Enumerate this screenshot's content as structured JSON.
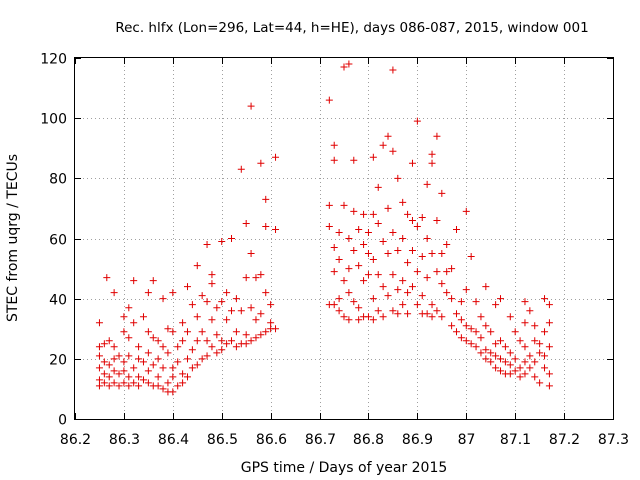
{
  "chart_data": {
    "type": "scatter",
    "title": "Rec. hlfx (Lon=296, Lat=44, h=HE), days 086-087, 2015, window 001",
    "xlabel": "GPS time / Days of year 2015",
    "ylabel": "STEC from uqrg / TECUs",
    "xlim": [
      86.2,
      87.3
    ],
    "ylim": [
      0,
      120
    ],
    "xticks": [
      86.2,
      86.3,
      86.4,
      86.5,
      86.6,
      86.7,
      86.8,
      86.9,
      87,
      87.1,
      87.2,
      87.3
    ],
    "xtick_labels": [
      "86.2",
      "86.3",
      "86.4",
      "86.5",
      "86.6",
      "86.7",
      "86.8",
      "86.9",
      "87",
      "87.1",
      "87.2",
      "87.3"
    ],
    "yticks": [
      0,
      20,
      40,
      60,
      80,
      100,
      120
    ],
    "ytick_labels": [
      "0",
      "20",
      "40",
      "60",
      "80",
      "100",
      "120"
    ],
    "grid": true,
    "marker": "+",
    "color": "#e00000",
    "series": [
      {
        "points": [
          [
            86.25,
            32
          ],
          [
            86.25,
            24
          ],
          [
            86.25,
            21
          ],
          [
            86.25,
            17
          ],
          [
            86.25,
            13
          ],
          [
            86.25,
            11
          ],
          [
            86.26,
            25
          ],
          [
            86.26,
            19
          ],
          [
            86.26,
            15
          ],
          [
            86.26,
            12
          ],
          [
            86.265,
            47
          ],
          [
            86.27,
            26
          ],
          [
            86.27,
            18
          ],
          [
            86.27,
            14
          ],
          [
            86.27,
            11
          ],
          [
            86.28,
            42
          ],
          [
            86.28,
            24
          ],
          [
            86.28,
            20
          ],
          [
            86.28,
            16
          ],
          [
            86.28,
            12
          ],
          [
            86.29,
            21
          ],
          [
            86.29,
            15
          ],
          [
            86.29,
            11
          ],
          [
            86.3,
            34
          ],
          [
            86.3,
            29
          ],
          [
            86.3,
            19
          ],
          [
            86.3,
            16
          ],
          [
            86.3,
            12
          ],
          [
            86.31,
            37
          ],
          [
            86.31,
            27
          ],
          [
            86.31,
            21
          ],
          [
            86.31,
            14
          ],
          [
            86.31,
            11
          ],
          [
            86.32,
            46
          ],
          [
            86.32,
            32
          ],
          [
            86.32,
            17
          ],
          [
            86.32,
            12
          ],
          [
            86.33,
            24
          ],
          [
            86.33,
            20
          ],
          [
            86.33,
            14
          ],
          [
            86.33,
            11
          ],
          [
            86.34,
            34
          ],
          [
            86.34,
            19
          ],
          [
            86.34,
            13
          ],
          [
            86.35,
            42
          ],
          [
            86.35,
            29
          ],
          [
            86.35,
            22
          ],
          [
            86.35,
            16
          ],
          [
            86.35,
            12
          ],
          [
            86.36,
            46
          ],
          [
            86.36,
            27
          ],
          [
            86.36,
            18
          ],
          [
            86.36,
            11
          ],
          [
            86.37,
            26
          ],
          [
            86.37,
            20
          ],
          [
            86.37,
            14
          ],
          [
            86.37,
            11
          ],
          [
            86.38,
            40
          ],
          [
            86.38,
            24
          ],
          [
            86.38,
            17
          ],
          [
            86.38,
            10
          ],
          [
            86.39,
            30
          ],
          [
            86.39,
            22
          ],
          [
            86.39,
            12
          ],
          [
            86.39,
            9
          ],
          [
            86.4,
            42
          ],
          [
            86.4,
            29
          ],
          [
            86.4,
            17
          ],
          [
            86.4,
            14
          ],
          [
            86.4,
            9
          ],
          [
            86.41,
            24
          ],
          [
            86.41,
            19
          ],
          [
            86.41,
            11
          ],
          [
            86.42,
            32
          ],
          [
            86.42,
            26
          ],
          [
            86.42,
            15
          ],
          [
            86.42,
            12
          ],
          [
            86.43,
            44
          ],
          [
            86.43,
            29
          ],
          [
            86.43,
            20
          ],
          [
            86.43,
            14
          ],
          [
            86.44,
            38
          ],
          [
            86.44,
            23
          ],
          [
            86.44,
            17
          ],
          [
            86.45,
            51
          ],
          [
            86.45,
            34
          ],
          [
            86.45,
            26
          ],
          [
            86.45,
            18
          ],
          [
            86.46,
            41
          ],
          [
            86.46,
            29
          ],
          [
            86.46,
            20
          ],
          [
            86.47,
            58
          ],
          [
            86.47,
            39
          ],
          [
            86.47,
            26
          ],
          [
            86.47,
            21
          ],
          [
            86.48,
            48
          ],
          [
            86.48,
            45
          ],
          [
            86.48,
            33
          ],
          [
            86.48,
            24
          ],
          [
            86.49,
            37
          ],
          [
            86.49,
            28
          ],
          [
            86.49,
            22
          ],
          [
            86.5,
            59
          ],
          [
            86.5,
            39
          ],
          [
            86.5,
            26
          ],
          [
            86.5,
            23
          ],
          [
            86.51,
            42
          ],
          [
            86.51,
            33
          ],
          [
            86.51,
            25
          ],
          [
            86.52,
            60
          ],
          [
            86.52,
            36
          ],
          [
            86.52,
            26
          ],
          [
            86.53,
            40
          ],
          [
            86.53,
            29
          ],
          [
            86.53,
            24
          ],
          [
            86.54,
            83
          ],
          [
            86.54,
            36
          ],
          [
            86.54,
            25
          ],
          [
            86.55,
            65
          ],
          [
            86.55,
            47
          ],
          [
            86.55,
            28
          ],
          [
            86.55,
            25
          ],
          [
            86.56,
            104
          ],
          [
            86.56,
            55
          ],
          [
            86.56,
            37
          ],
          [
            86.56,
            26
          ],
          [
            86.57,
            47
          ],
          [
            86.57,
            33
          ],
          [
            86.57,
            27
          ],
          [
            86.58,
            85
          ],
          [
            86.58,
            48
          ],
          [
            86.58,
            35
          ],
          [
            86.58,
            28
          ],
          [
            86.59,
            73
          ],
          [
            86.59,
            64
          ],
          [
            86.59,
            42
          ],
          [
            86.59,
            29
          ],
          [
            86.6,
            38
          ],
          [
            86.6,
            32
          ],
          [
            86.6,
            30
          ],
          [
            86.61,
            87
          ],
          [
            86.61,
            63
          ],
          [
            86.61,
            30
          ],
          [
            86.72,
            106
          ],
          [
            86.72,
            71
          ],
          [
            86.72,
            64
          ],
          [
            86.72,
            38
          ],
          [
            86.73,
            91
          ],
          [
            86.73,
            86
          ],
          [
            86.73,
            57
          ],
          [
            86.73,
            49
          ],
          [
            86.73,
            38
          ],
          [
            86.74,
            62
          ],
          [
            86.74,
            53
          ],
          [
            86.74,
            40
          ],
          [
            86.74,
            36
          ],
          [
            86.75,
            117
          ],
          [
            86.75,
            71
          ],
          [
            86.75,
            46
          ],
          [
            86.75,
            34
          ],
          [
            86.76,
            118
          ],
          [
            86.76,
            60
          ],
          [
            86.76,
            50
          ],
          [
            86.76,
            42
          ],
          [
            86.76,
            33
          ],
          [
            86.77,
            86
          ],
          [
            86.77,
            69
          ],
          [
            86.77,
            56
          ],
          [
            86.77,
            39
          ],
          [
            86.78,
            63
          ],
          [
            86.78,
            51
          ],
          [
            86.78,
            37
          ],
          [
            86.78,
            33
          ],
          [
            86.79,
            68
          ],
          [
            86.79,
            58
          ],
          [
            86.79,
            46
          ],
          [
            86.79,
            34
          ],
          [
            86.8,
            62
          ],
          [
            86.8,
            55
          ],
          [
            86.8,
            48
          ],
          [
            86.8,
            34
          ],
          [
            86.81,
            87
          ],
          [
            86.81,
            68
          ],
          [
            86.81,
            53
          ],
          [
            86.81,
            40
          ],
          [
            86.81,
            33
          ],
          [
            86.82,
            77
          ],
          [
            86.82,
            65
          ],
          [
            86.82,
            48
          ],
          [
            86.82,
            36
          ],
          [
            86.83,
            91
          ],
          [
            86.83,
            59
          ],
          [
            86.83,
            44
          ],
          [
            86.83,
            34
          ],
          [
            86.84,
            94
          ],
          [
            86.84,
            70
          ],
          [
            86.84,
            55
          ],
          [
            86.84,
            41
          ],
          [
            86.85,
            116
          ],
          [
            86.85,
            89
          ],
          [
            86.85,
            62
          ],
          [
            86.85,
            48
          ],
          [
            86.85,
            36
          ],
          [
            86.86,
            80
          ],
          [
            86.86,
            56
          ],
          [
            86.86,
            43
          ],
          [
            86.86,
            35
          ],
          [
            86.87,
            72
          ],
          [
            86.87,
            60
          ],
          [
            86.87,
            46
          ],
          [
            86.87,
            38
          ],
          [
            86.88,
            68
          ],
          [
            86.88,
            52
          ],
          [
            86.88,
            42
          ],
          [
            86.88,
            35
          ],
          [
            86.89,
            85
          ],
          [
            86.89,
            66
          ],
          [
            86.89,
            56
          ],
          [
            86.89,
            44
          ],
          [
            86.9,
            99
          ],
          [
            86.9,
            64
          ],
          [
            86.9,
            49
          ],
          [
            86.9,
            38
          ],
          [
            86.91,
            67
          ],
          [
            86.91,
            54
          ],
          [
            86.91,
            41
          ],
          [
            86.91,
            35
          ],
          [
            86.92,
            78
          ],
          [
            86.92,
            60
          ],
          [
            86.92,
            47
          ],
          [
            86.92,
            35
          ],
          [
            86.93,
            88
          ],
          [
            86.93,
            85
          ],
          [
            86.93,
            55
          ],
          [
            86.93,
            38
          ],
          [
            86.93,
            34
          ],
          [
            86.94,
            94
          ],
          [
            86.94,
            66
          ],
          [
            86.94,
            49
          ],
          [
            86.94,
            36
          ],
          [
            86.95,
            75
          ],
          [
            86.95,
            55
          ],
          [
            86.95,
            45
          ],
          [
            86.95,
            34
          ],
          [
            86.96,
            58
          ],
          [
            86.96,
            49
          ],
          [
            86.96,
            42
          ],
          [
            86.97,
            50
          ],
          [
            86.97,
            40
          ],
          [
            86.97,
            31
          ],
          [
            86.98,
            63
          ],
          [
            86.98,
            35
          ],
          [
            86.98,
            29
          ],
          [
            86.99,
            39
          ],
          [
            86.99,
            33
          ],
          [
            86.99,
            27
          ],
          [
            87,
            69
          ],
          [
            87,
            43
          ],
          [
            87,
            31
          ],
          [
            87,
            26
          ],
          [
            87.01,
            54
          ],
          [
            87.01,
            30
          ],
          [
            87.01,
            25
          ],
          [
            87.02,
            39
          ],
          [
            87.02,
            29
          ],
          [
            87.02,
            24
          ],
          [
            87.03,
            34
          ],
          [
            87.03,
            27
          ],
          [
            87.03,
            22
          ],
          [
            87.04,
            44
          ],
          [
            87.04,
            31
          ],
          [
            87.04,
            23
          ],
          [
            87.04,
            20
          ],
          [
            87.05,
            29
          ],
          [
            87.05,
            22
          ],
          [
            87.05,
            19
          ],
          [
            87.06,
            38
          ],
          [
            87.06,
            25
          ],
          [
            87.06,
            21
          ],
          [
            87.06,
            17
          ],
          [
            87.07,
            40
          ],
          [
            87.07,
            26
          ],
          [
            87.07,
            20
          ],
          [
            87.07,
            16
          ],
          [
            87.08,
            24
          ],
          [
            87.08,
            19
          ],
          [
            87.08,
            15
          ],
          [
            87.09,
            34
          ],
          [
            87.09,
            22
          ],
          [
            87.09,
            18
          ],
          [
            87.09,
            15
          ],
          [
            87.1,
            29
          ],
          [
            87.1,
            20
          ],
          [
            87.1,
            16
          ],
          [
            87.11,
            26
          ],
          [
            87.11,
            17
          ],
          [
            87.11,
            14
          ],
          [
            87.12,
            39
          ],
          [
            87.12,
            32
          ],
          [
            87.12,
            24
          ],
          [
            87.12,
            19
          ],
          [
            87.12,
            15
          ],
          [
            87.13,
            36
          ],
          [
            87.13,
            21
          ],
          [
            87.13,
            17
          ],
          [
            87.14,
            31
          ],
          [
            87.14,
            26
          ],
          [
            87.14,
            19
          ],
          [
            87.14,
            14
          ],
          [
            87.15,
            25
          ],
          [
            87.15,
            22
          ],
          [
            87.15,
            12
          ],
          [
            87.16,
            40
          ],
          [
            87.16,
            29
          ],
          [
            87.16,
            21
          ],
          [
            87.16,
            17
          ],
          [
            87.17,
            38
          ],
          [
            87.17,
            32
          ],
          [
            87.17,
            24
          ],
          [
            87.17,
            15
          ],
          [
            87.17,
            11
          ]
        ]
      }
    ]
  }
}
